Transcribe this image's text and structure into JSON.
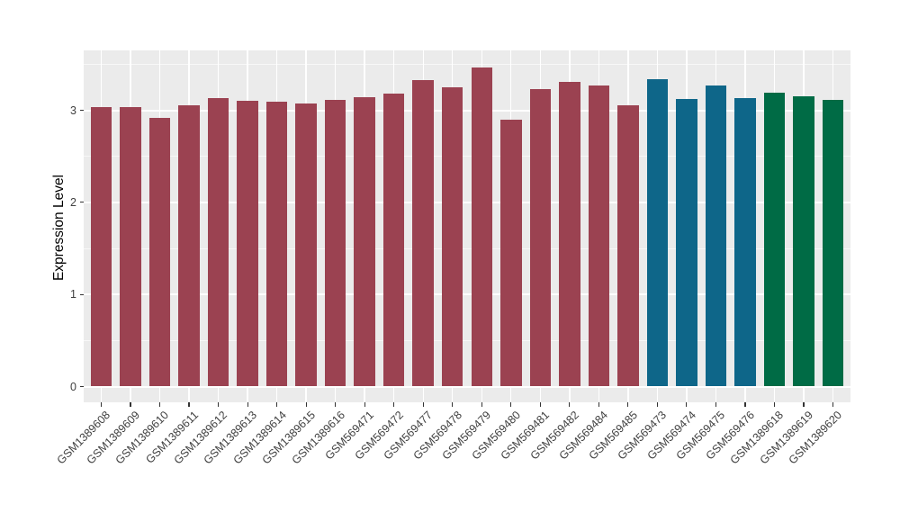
{
  "chart_data": {
    "type": "bar",
    "title": "",
    "xlabel": "",
    "ylabel": "Expression Level",
    "ylim": [
      -0.17,
      3.65
    ],
    "yticks": [
      0,
      1,
      2,
      3
    ],
    "minor_yticks": [
      0.5,
      1.5,
      2.5,
      3.5
    ],
    "grid": "on",
    "legend_position": "none",
    "categories": [
      "GSM1389608",
      "GSM1389609",
      "GSM1389610",
      "GSM1389611",
      "GSM1389612",
      "GSM1389613",
      "GSM1389614",
      "GSM1389615",
      "GSM1389616",
      "GSM569471",
      "GSM569472",
      "GSM569477",
      "GSM569478",
      "GSM569479",
      "GSM569480",
      "GSM569481",
      "GSM569482",
      "GSM569484",
      "GSM569485",
      "GSM569473",
      "GSM569474",
      "GSM569475",
      "GSM569476",
      "GSM1389618",
      "GSM1389619",
      "GSM1389620"
    ],
    "values": [
      3.04,
      3.04,
      2.92,
      3.05,
      3.13,
      3.1,
      3.09,
      3.07,
      3.11,
      3.14,
      3.18,
      3.33,
      3.25,
      3.47,
      2.9,
      3.23,
      3.31,
      3.27,
      3.05,
      3.34,
      3.12,
      3.27,
      3.13,
      3.19,
      3.15,
      3.11
    ],
    "bar_colors": [
      "#9B4251",
      "#9B4251",
      "#9B4251",
      "#9B4251",
      "#9B4251",
      "#9B4251",
      "#9B4251",
      "#9B4251",
      "#9B4251",
      "#9B4251",
      "#9B4251",
      "#9B4251",
      "#9B4251",
      "#9B4251",
      "#9B4251",
      "#9B4251",
      "#9B4251",
      "#9B4251",
      "#9B4251",
      "#0E6689",
      "#0E6689",
      "#0E6689",
      "#0E6689",
      "#006B45",
      "#006B45",
      "#006B45"
    ]
  },
  "colors": {
    "panel_background": "#EBEBEB",
    "gridline": "#FFFFFF",
    "bar_red": "#9B4251",
    "bar_teal": "#0E6689",
    "bar_green": "#006B45",
    "axis_text": "#404040",
    "axis_title": "#000000"
  }
}
